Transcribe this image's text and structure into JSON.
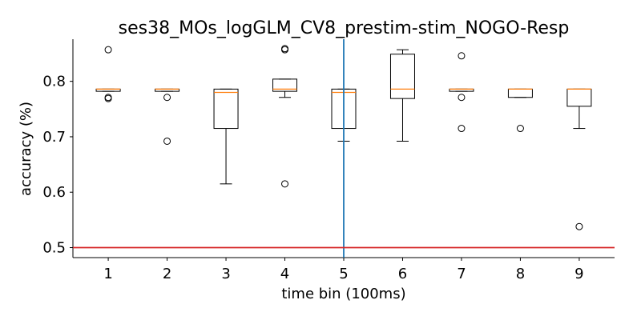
{
  "chart_data": {
    "type": "box",
    "title": "ses38_MOs_logGLM_CV8_prestim-stim_NOGO-Resp",
    "xlabel": "time bin (100ms)",
    "ylabel": "accuracy (%)",
    "ylim": [
      0.482,
      0.876
    ],
    "yticks": [
      0.5,
      0.6,
      0.7,
      0.8
    ],
    "categories": [
      "1",
      "2",
      "3",
      "4",
      "5",
      "6",
      "7",
      "8",
      "9"
    ],
    "boxes": [
      {
        "whislo": 0.782,
        "q1": 0.782,
        "med": 0.786,
        "q3": 0.786,
        "whishi": 0.786,
        "fliers": [
          0.857,
          0.771,
          0.769
        ]
      },
      {
        "whislo": 0.782,
        "q1": 0.782,
        "med": 0.786,
        "q3": 0.786,
        "whishi": 0.786,
        "fliers": [
          0.771,
          0.692
        ]
      },
      {
        "whislo": 0.615,
        "q1": 0.715,
        "med": 0.78,
        "q3": 0.786,
        "whishi": 0.786,
        "fliers": []
      },
      {
        "whislo": 0.771,
        "q1": 0.782,
        "med": 0.786,
        "q3": 0.804,
        "whishi": 0.804,
        "fliers": [
          0.857,
          0.859,
          0.615
        ]
      },
      {
        "whislo": 0.692,
        "q1": 0.715,
        "med": 0.78,
        "q3": 0.786,
        "whishi": 0.786,
        "fliers": []
      },
      {
        "whislo": 0.692,
        "q1": 0.769,
        "med": 0.786,
        "q3": 0.849,
        "whishi": 0.857,
        "fliers": []
      },
      {
        "whislo": 0.782,
        "q1": 0.782,
        "med": 0.786,
        "q3": 0.786,
        "whishi": 0.786,
        "fliers": [
          0.846,
          0.771,
          0.715
        ]
      },
      {
        "whislo": 0.771,
        "q1": 0.771,
        "med": 0.786,
        "q3": 0.786,
        "whishi": 0.786,
        "fliers": [
          0.715
        ]
      },
      {
        "whislo": 0.715,
        "q1": 0.755,
        "med": 0.786,
        "q3": 0.786,
        "whishi": 0.786,
        "fliers": [
          0.538
        ]
      }
    ],
    "reference_lines": [
      {
        "orientation": "vertical",
        "x": 5,
        "color": "#1f77b4"
      },
      {
        "orientation": "horizontal",
        "y": 0.5,
        "color": "#d62728"
      }
    ],
    "colors": {
      "box": "#000000",
      "median": "#ff7f0e"
    },
    "grid": false
  }
}
